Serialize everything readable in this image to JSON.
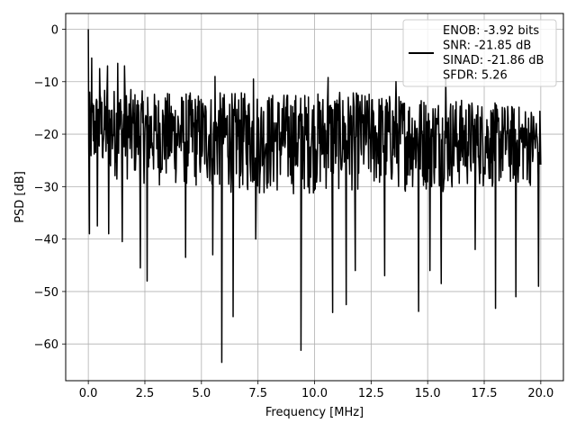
{
  "chart_data": {
    "type": "line",
    "title": "",
    "xlabel": "Frequency [MHz]",
    "ylabel": "PSD [dB]",
    "xlim": [
      -1.0,
      21.0
    ],
    "ylim": [
      -67.0,
      3.0
    ],
    "grid": true,
    "legend_position": "top-right",
    "x_ticks": [
      0.0,
      2.5,
      5.0,
      7.5,
      10.0,
      12.5,
      15.0,
      17.5,
      20.0
    ],
    "x_tick_labels": [
      "0.0",
      "2.5",
      "5.0",
      "7.5",
      "10.0",
      "12.5",
      "15.0",
      "17.5",
      "20.0"
    ],
    "y_ticks": [
      0,
      -10,
      -20,
      -30,
      -40,
      -50,
      -60
    ],
    "y_tick_labels": [
      "0",
      "−10",
      "−20",
      "−30",
      "−40",
      "−50",
      "−60"
    ],
    "legend_lines": [
      "ENOB: -3.92 bits",
      "SNR: -21.85 dB",
      "SINAD: -21.86 dB",
      "SFDR: 5.26"
    ],
    "series": [
      {
        "color": "#000000",
        "x_range": [
          0.0,
          20.0
        ],
        "num_points": 1000,
        "band_top": [
          [
            0.0,
            -12
          ],
          [
            1.0,
            -11
          ],
          [
            3.0,
            -12
          ],
          [
            8.0,
            -12
          ],
          [
            12.0,
            -12
          ],
          [
            16.0,
            -13
          ],
          [
            20.0,
            -15
          ]
        ],
        "band_bottom": [
          [
            0.0,
            -28
          ],
          [
            3.0,
            -30
          ],
          [
            8.0,
            -32
          ],
          [
            12.0,
            -31
          ],
          [
            16.0,
            -31
          ],
          [
            20.0,
            -30
          ]
        ],
        "peaks": [
          [
            0.0,
            0.0
          ],
          [
            0.15,
            -5.5
          ],
          [
            0.5,
            -7.5
          ],
          [
            0.85,
            -7.0
          ],
          [
            1.3,
            -6.5
          ],
          [
            1.6,
            -7.0
          ],
          [
            2.3,
            -8.5
          ],
          [
            4.3,
            -8.0
          ],
          [
            5.6,
            -9.0
          ],
          [
            7.3,
            -9.5
          ],
          [
            10.6,
            -9.2
          ],
          [
            13.6,
            -10.0
          ],
          [
            15.8,
            -9.5
          ]
        ],
        "dips": [
          [
            0.05,
            -39.0
          ],
          [
            0.4,
            -37.5
          ],
          [
            0.9,
            -39.0
          ],
          [
            1.5,
            -40.5
          ],
          [
            2.3,
            -45.5
          ],
          [
            2.6,
            -48.0
          ],
          [
            4.3,
            -43.5
          ],
          [
            5.5,
            -43.0
          ],
          [
            5.9,
            -63.5
          ],
          [
            6.4,
            -54.8
          ],
          [
            7.4,
            -40.0
          ],
          [
            9.4,
            -61.2
          ],
          [
            10.8,
            -54.0
          ],
          [
            11.4,
            -52.5
          ],
          [
            11.8,
            -46.0
          ],
          [
            13.1,
            -47.0
          ],
          [
            14.6,
            -53.8
          ],
          [
            15.1,
            -46.0
          ],
          [
            15.6,
            -48.5
          ],
          [
            17.1,
            -42.0
          ],
          [
            18.0,
            -53.2
          ],
          [
            18.9,
            -51.0
          ],
          [
            19.9,
            -49.0
          ]
        ]
      }
    ]
  }
}
